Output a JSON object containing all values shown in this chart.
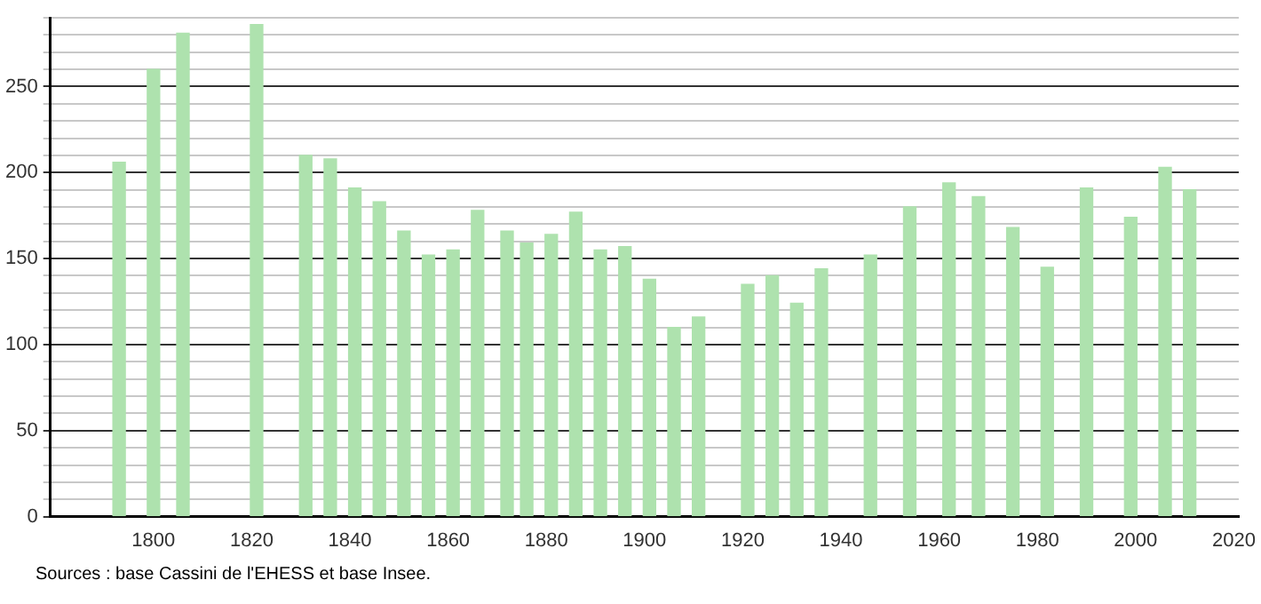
{
  "chart_data": {
    "type": "bar",
    "x": [
      1793,
      1800,
      1806,
      1821,
      1831,
      1836,
      1841,
      1846,
      1851,
      1856,
      1861,
      1866,
      1872,
      1876,
      1881,
      1886,
      1891,
      1896,
      1901,
      1906,
      1911,
      1921,
      1926,
      1931,
      1936,
      1946,
      1954,
      1962,
      1968,
      1975,
      1982,
      1990,
      1999,
      2006,
      2011
    ],
    "series": [
      {
        "color": "#aee2ae",
        "values": [
          206,
          260,
          281,
          286,
          210,
          208,
          191,
          183,
          166,
          152,
          155,
          178,
          166,
          159,
          164,
          177,
          155,
          157,
          138,
          110,
          116,
          135,
          140,
          124,
          144,
          152,
          180,
          194,
          186,
          168,
          145,
          191,
          174,
          203,
          190
        ]
      }
    ],
    "xlim": [
      1779,
      2021
    ],
    "xticks": [
      1800,
      1820,
      1840,
      1860,
      1880,
      1900,
      1920,
      1940,
      1960,
      1980,
      2000,
      2020
    ],
    "ylim": [
      0,
      290
    ],
    "yticks": [
      0,
      {
        "value": 10,
        "label": null
      },
      {
        "value": 20,
        "label": null
      },
      {
        "value": 30,
        "label": null
      },
      {
        "value": 40,
        "label": null
      },
      50,
      {
        "value": 60,
        "label": null
      },
      {
        "value": 70,
        "label": null
      },
      {
        "value": 80,
        "label": null
      },
      {
        "value": 90,
        "label": null
      },
      100,
      {
        "value": 110,
        "label": null
      },
      {
        "value": 120,
        "label": null
      },
      {
        "value": 130,
        "label": null
      },
      {
        "value": 140,
        "label": null
      },
      150,
      {
        "value": 160,
        "label": null
      },
      {
        "value": 170,
        "label": null
      },
      {
        "value": 180,
        "label": null
      },
      {
        "value": 190,
        "label": null
      },
      200,
      {
        "value": 210,
        "label": null
      },
      {
        "value": 220,
        "label": null
      },
      {
        "value": 230,
        "label": null
      },
      {
        "value": 240,
        "label": null
      },
      250,
      {
        "value": 260,
        "label": null
      },
      {
        "value": 270,
        "label": null
      },
      {
        "value": 280,
        "label": null
      },
      {
        "value": 290,
        "label": null
      }
    ],
    "grid": "y",
    "legend": false,
    "annotations": [
      "Sources : base Cassini de l'EHESS et base Insee."
    ]
  }
}
